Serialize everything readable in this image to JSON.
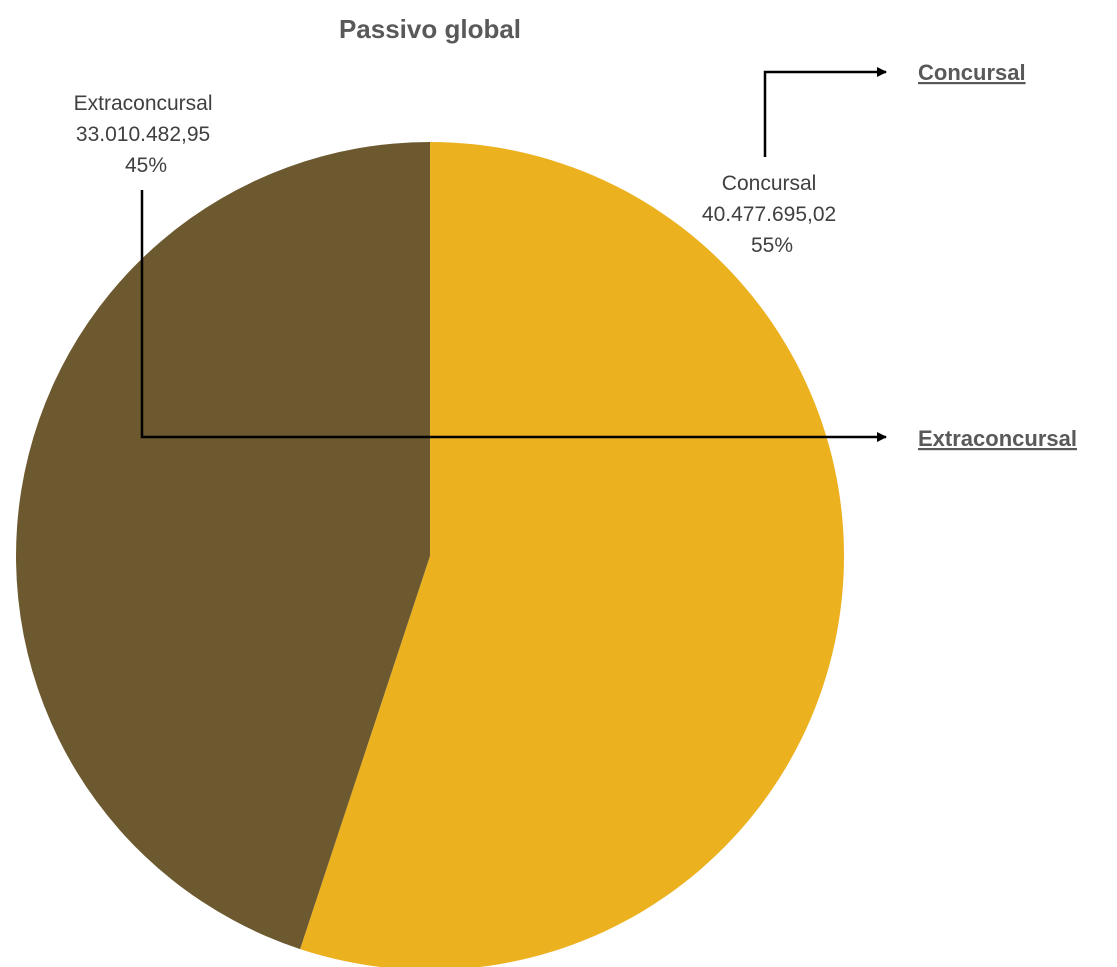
{
  "chart_data": {
    "type": "pie",
    "title": "Passivo global",
    "slices": [
      {
        "name": "Concursal",
        "value": 40477695.02,
        "value_label": "40.477.695,02",
        "percent_label": "55%",
        "color": "#ECB11F"
      },
      {
        "name": "Extraconcursal",
        "value": 33010482.95,
        "value_label": "33.010.482,95",
        "percent_label": "45%",
        "color": "#6D592F"
      }
    ],
    "start_angle_deg": 0,
    "direction": "clockwise",
    "links": [
      {
        "label": "Concursal"
      },
      {
        "label": "Extraconcursal"
      }
    ]
  }
}
